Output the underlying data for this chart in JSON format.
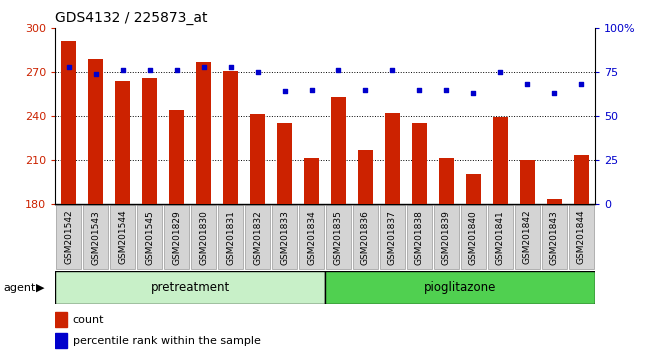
{
  "title": "GDS4132 / 225873_at",
  "categories": [
    "GSM201542",
    "GSM201543",
    "GSM201544",
    "GSM201545",
    "GSM201829",
    "GSM201830",
    "GSM201831",
    "GSM201832",
    "GSM201833",
    "GSM201834",
    "GSM201835",
    "GSM201836",
    "GSM201837",
    "GSM201838",
    "GSM201839",
    "GSM201840",
    "GSM201841",
    "GSM201842",
    "GSM201843",
    "GSM201844"
  ],
  "bar_values": [
    291,
    279,
    264,
    266,
    244,
    277,
    271,
    241,
    235,
    211,
    253,
    217,
    242,
    235,
    211,
    200,
    239,
    210,
    183,
    213
  ],
  "percentile_values": [
    78,
    74,
    76,
    76,
    76,
    78,
    78,
    75,
    64,
    65,
    76,
    65,
    76,
    65,
    65,
    63,
    75,
    68,
    63,
    68
  ],
  "bar_color": "#cc2200",
  "dot_color": "#0000cc",
  "ylim_left": [
    180,
    300
  ],
  "ylim_right": [
    0,
    100
  ],
  "yticks_left": [
    180,
    210,
    240,
    270,
    300
  ],
  "yticks_right": [
    0,
    25,
    50,
    75,
    100
  ],
  "yticklabels_right": [
    "0",
    "25",
    "50",
    "75",
    "100%"
  ],
  "pre_count": 10,
  "pio_count": 10,
  "pretreatment_label": "pretreatment",
  "pioglitazone_label": "pioglitazone",
  "agent_label": "agent",
  "legend_count": "count",
  "legend_percentile": "percentile rank within the sample",
  "bar_width": 0.55,
  "bg_color": "#ffffff",
  "cell_color": "#d4d4d4",
  "pre_color": "#c8f0c8",
  "pio_color": "#50d050",
  "title_fontsize": 10,
  "tick_label_fontsize": 6.5,
  "grid_dotted_vals": [
    210,
    240,
    270
  ]
}
